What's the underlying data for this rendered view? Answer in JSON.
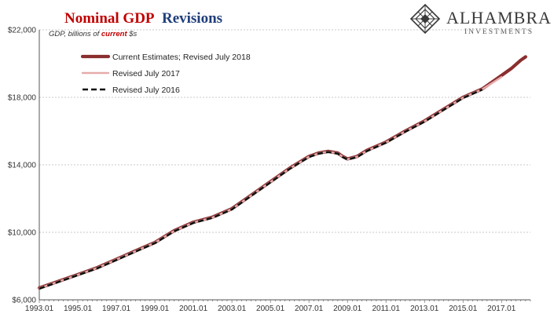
{
  "chart_data": {
    "type": "line",
    "title_part1": "Nominal GDP",
    "title_part2": "Revisions",
    "subtitle_prefix": "GDP, billions of ",
    "subtitle_emphasis": "current",
    "subtitle_suffix": " $s",
    "ylim": [
      6000,
      22000
    ],
    "y_ticks": [
      6000,
      10000,
      14000,
      18000,
      22000
    ],
    "y_tick_labels": [
      "$6,000",
      "$10,000",
      "$14,000",
      "$18,000",
      "$22,000"
    ],
    "x_range": [
      1993.0,
      2018.5
    ],
    "x_tick_labels": [
      "1993.01",
      "1995.01",
      "1997.01",
      "1999.01",
      "2001.01",
      "2003.01",
      "2005.01",
      "2007.01",
      "2009.01",
      "2011.01",
      "2013.01",
      "2015.01",
      "2017.01"
    ],
    "grid": true,
    "legend_position": "top-left",
    "series": [
      {
        "name": "Current Estimates; Revised July 2018",
        "color": "#8b2e2e",
        "style": "solid-thick",
        "x": [
          1993.0,
          1994.0,
          1995.0,
          1996.0,
          1997.0,
          1998.0,
          1999.0,
          2000.0,
          2001.0,
          2002.0,
          2003.0,
          2004.0,
          2005.0,
          2006.0,
          2007.0,
          2007.5,
          2008.0,
          2008.5,
          2008.75,
          2009.0,
          2009.5,
          2010.0,
          2011.0,
          2012.0,
          2013.0,
          2014.0,
          2015.0,
          2016.0,
          2017.0,
          2017.5,
          2018.0,
          2018.25
        ],
        "values": [
          6700,
          7100,
          7500,
          7900,
          8400,
          8900,
          9400,
          10100,
          10600,
          10900,
          11400,
          12200,
          13000,
          13800,
          14500,
          14700,
          14800,
          14700,
          14500,
          14350,
          14500,
          14850,
          15350,
          16000,
          16600,
          17300,
          18000,
          18500,
          19300,
          19700,
          20200,
          20400
        ]
      },
      {
        "name": "Revised July 2017",
        "color": "#e6aaaa",
        "style": "solid",
        "x": [
          1993.0,
          1994.0,
          1995.0,
          1996.0,
          1997.0,
          1998.0,
          1999.0,
          2000.0,
          2001.0,
          2002.0,
          2003.0,
          2004.0,
          2005.0,
          2006.0,
          2007.0,
          2007.5,
          2008.0,
          2008.5,
          2008.75,
          2009.0,
          2009.5,
          2010.0,
          2011.0,
          2012.0,
          2013.0,
          2014.0,
          2015.0,
          2016.0,
          2017.0
        ],
        "values": [
          6690,
          7085,
          7485,
          7885,
          8385,
          8885,
          9385,
          10080,
          10580,
          10880,
          11380,
          12180,
          12980,
          13780,
          14480,
          14680,
          14780,
          14680,
          14480,
          14330,
          14480,
          14830,
          15330,
          15980,
          16580,
          17280,
          17980,
          18480,
          19200
        ]
      },
      {
        "name": "Revised July 2016",
        "color": "#111111",
        "style": "dashed",
        "x": [
          1993.0,
          1994.0,
          1995.0,
          1996.0,
          1997.0,
          1998.0,
          1999.0,
          2000.0,
          2001.0,
          2002.0,
          2003.0,
          2004.0,
          2005.0,
          2006.0,
          2007.0,
          2007.5,
          2008.0,
          2008.5,
          2008.75,
          2009.0,
          2009.5,
          2010.0,
          2011.0,
          2012.0,
          2013.0,
          2014.0,
          2015.0,
          2016.0
        ],
        "values": [
          6660,
          7060,
          7460,
          7860,
          8360,
          8860,
          9360,
          10060,
          10560,
          10860,
          11360,
          12160,
          12960,
          13760,
          14460,
          14660,
          14760,
          14660,
          14460,
          14310,
          14460,
          14810,
          15310,
          15960,
          16560,
          17260,
          17960,
          18460
        ]
      }
    ]
  },
  "logo": {
    "name": "ALHAMBRA",
    "tagline": "INVESTMENTS"
  }
}
